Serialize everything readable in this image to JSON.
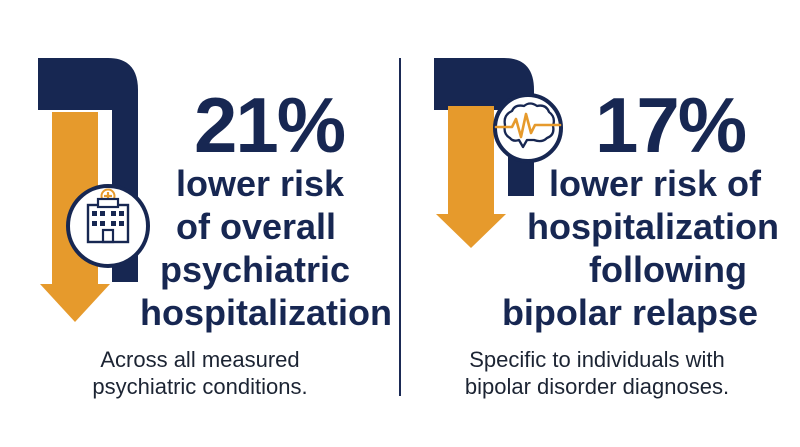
{
  "left_stat": {
    "percent": "21%",
    "lines": [
      "lower risk",
      "of overall",
      "psychiatric",
      "hospitalization"
    ],
    "subtitle_lines": [
      "Across all measured",
      "psychiatric conditions."
    ],
    "icon": "hospital-building-icon"
  },
  "right_stat": {
    "percent": "17%",
    "lines": [
      "lower risk of",
      "hospitalization",
      "following",
      "bipolar relapse"
    ],
    "subtitle_lines": [
      "Specific to individuals with",
      "bipolar disorder diagnoses."
    ],
    "icon": "brain-heartbeat-icon"
  },
  "colors": {
    "navy": "#172752",
    "orange": "#e69a2c",
    "text": "#1c2433",
    "background": "#ffffff"
  }
}
